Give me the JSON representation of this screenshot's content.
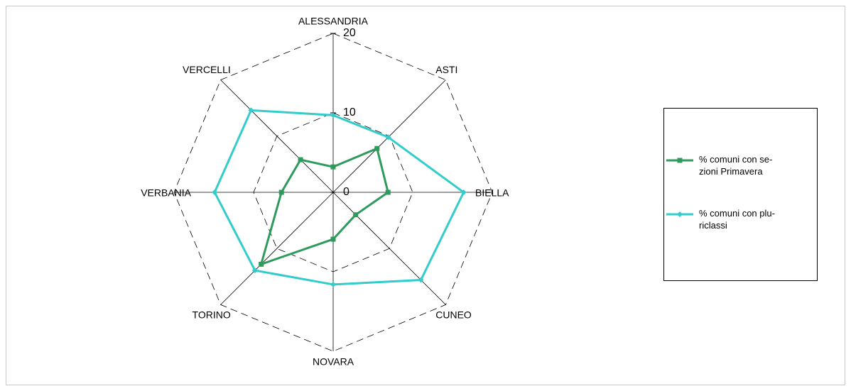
{
  "chart_data": {
    "type": "radar",
    "categories": [
      "ALESSANDRIA",
      "ASTI",
      "BIELLA",
      "CUNEO",
      "NOVARA",
      "TORINO",
      "VERBANIA",
      "VERCELLI"
    ],
    "series": [
      {
        "name": "% comuni con se-\nzioni Primavera",
        "color": "#2e9a5c",
        "marker": "square",
        "values": [
          3.2,
          7.8,
          6.9,
          4.0,
          5.9,
          12.8,
          6.5,
          5.8
        ]
      },
      {
        "name": "% comuni con plu-\nriclassi",
        "color": "#33cccc",
        "marker": "diamond",
        "values": [
          9.7,
          9.8,
          16.4,
          15.6,
          11.6,
          13.9,
          14.9,
          14.6
        ]
      }
    ],
    "ylim": [
      0,
      20
    ],
    "yticks": [
      0,
      10,
      20
    ],
    "grid": true,
    "legend": "right"
  }
}
